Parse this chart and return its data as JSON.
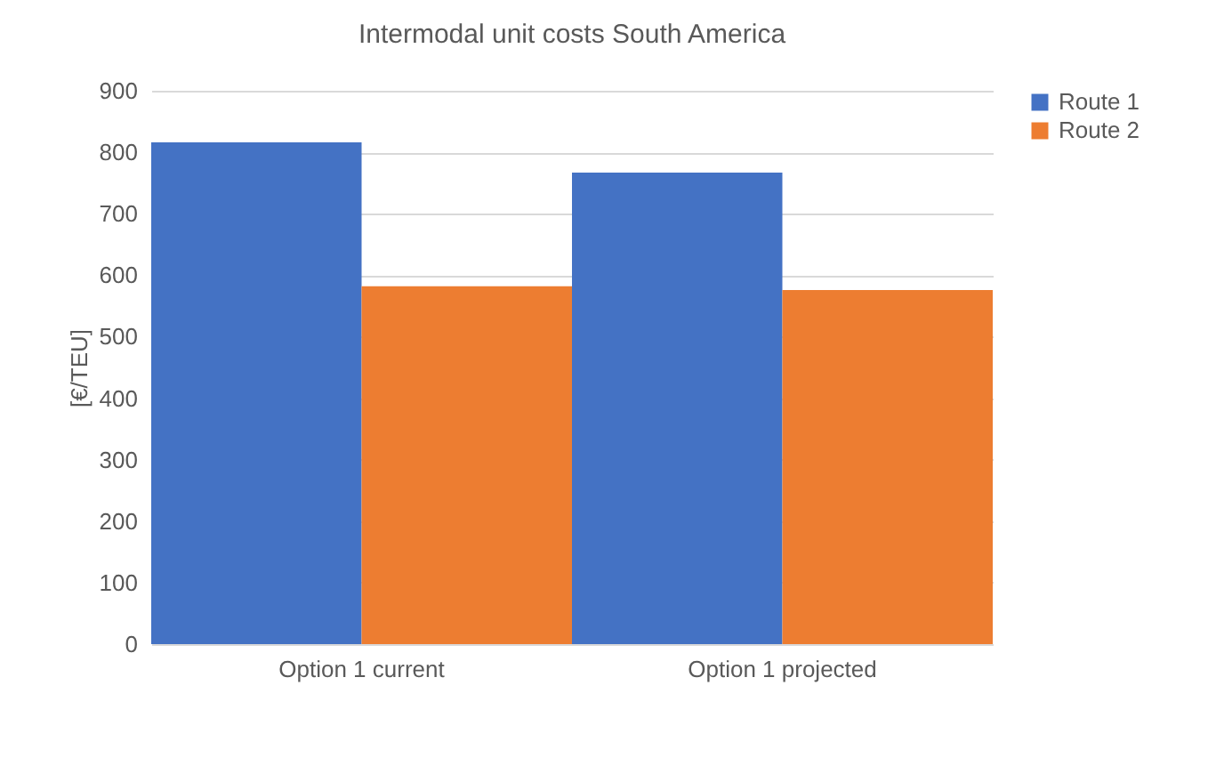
{
  "chart_data": {
    "type": "bar",
    "title": "Intermodal unit costs South America",
    "ylabel": "[€/TEU]",
    "categories": [
      "Option 1 current",
      "Option 1 projected"
    ],
    "series": [
      {
        "name": "Route 1",
        "color": "#4472c4",
        "values": [
          816,
          767
        ]
      },
      {
        "name": "Route 2",
        "color": "#ed7d31",
        "values": [
          582,
          576
        ]
      }
    ],
    "ylim": [
      0,
      900
    ],
    "yticks": [
      0,
      100,
      200,
      300,
      400,
      500,
      600,
      700,
      800,
      900
    ],
    "grid": "y",
    "legend": "right"
  }
}
